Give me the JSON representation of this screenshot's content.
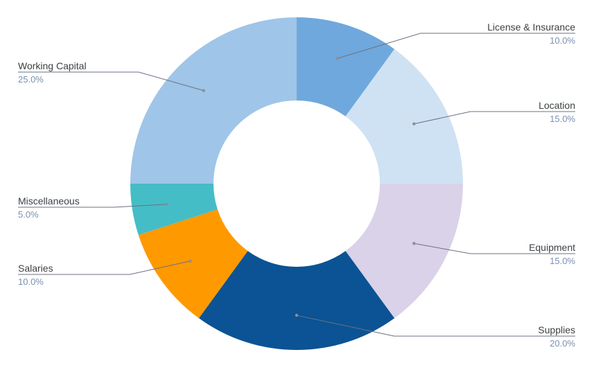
{
  "chart_data": {
    "type": "pie",
    "donut": true,
    "title": "",
    "slices": [
      {
        "label": "License & Insurance",
        "value": 10.0,
        "display": "10.0%",
        "color": "#6fa8dc"
      },
      {
        "label": "Location",
        "value": 15.0,
        "display": "15.0%",
        "color": "#cfe2f3"
      },
      {
        "label": "Equipment",
        "value": 15.0,
        "display": "15.0%",
        "color": "#d9d2e9"
      },
      {
        "label": "Supplies",
        "value": 20.0,
        "display": "20.0%",
        "color": "#0b5394"
      },
      {
        "label": "Salaries",
        "value": 10.0,
        "display": "10.0%",
        "color": "#ff9900"
      },
      {
        "label": "Miscellaneous",
        "value": 5.0,
        "display": "5.0%",
        "color": "#45bdc6"
      },
      {
        "label": "Working Capital",
        "value": 25.0,
        "display": "25.0%",
        "color": "#9fc5e8"
      }
    ],
    "start_angle_deg": 0,
    "direction": "clockwise",
    "legend": "none",
    "labels": "outside-with-leader-lines"
  }
}
